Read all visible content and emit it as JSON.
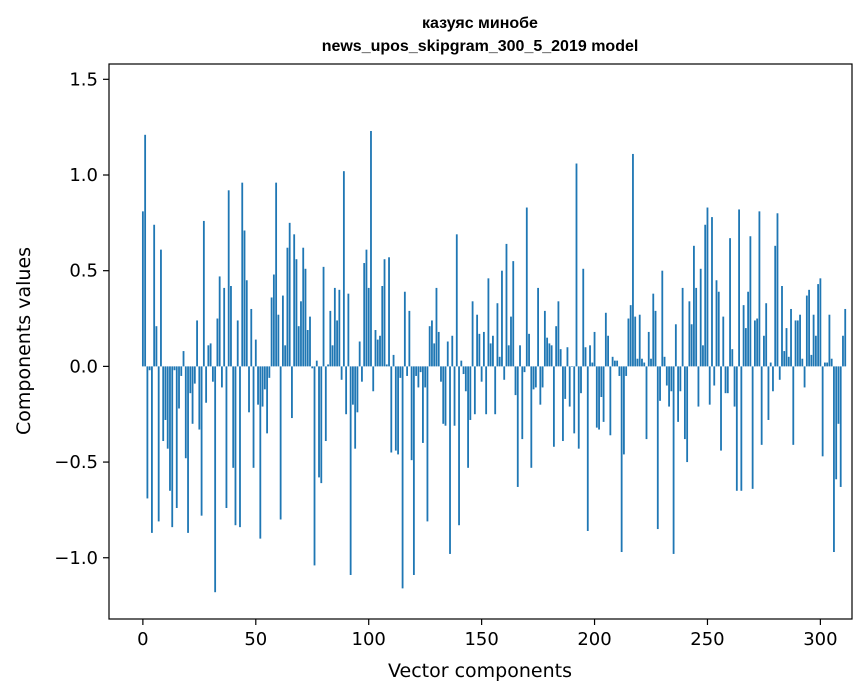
{
  "chart_data": {
    "type": "bar",
    "title_line1": "казуяс минобе",
    "title_line2": "news_upos_skipgram_300_5_2019 model",
    "xlabel": "Vector components",
    "ylabel": "Components values",
    "xlim": [
      -15,
      314
    ],
    "ylim": [
      -1.32,
      1.58
    ],
    "xticks": [
      0,
      50,
      100,
      150,
      200,
      250,
      300
    ],
    "xtick_labels": [
      "0",
      "50",
      "100",
      "150",
      "200",
      "250",
      "300"
    ],
    "yticks": [
      -1.0,
      -0.5,
      0.0,
      0.5,
      1.0,
      1.5
    ],
    "ytick_labels": [
      "−1.0",
      "−0.5",
      "0.0",
      "0.5",
      "1.0",
      "1.5"
    ],
    "bar_color": "#1f77b4",
    "values": [
      0.81,
      1.21,
      -0.69,
      -0.02,
      -0.87,
      0.74,
      0.21,
      -0.81,
      0.61,
      -0.39,
      -0.28,
      -0.43,
      -0.65,
      -0.84,
      -0.02,
      -0.74,
      -0.22,
      -0.05,
      0.08,
      -0.48,
      -0.87,
      -0.14,
      -0.3,
      -0.09,
      0.24,
      -0.33,
      -0.78,
      0.76,
      -0.19,
      0.11,
      0.12,
      -0.08,
      -1.18,
      0.25,
      0.47,
      -0.11,
      0.41,
      -0.74,
      0.92,
      0.42,
      -0.53,
      -0.83,
      0.24,
      -0.84,
      0.96,
      0.71,
      0.45,
      -0.24,
      0.3,
      -0.53,
      0.14,
      -0.2,
      -0.9,
      -0.21,
      -0.12,
      -0.35,
      -0.06,
      0.36,
      0.48,
      0.96,
      0.27,
      -0.8,
      0.37,
      0.11,
      0.62,
      0.75,
      -0.27,
      0.69,
      0.56,
      0.21,
      0.34,
      0.62,
      0.51,
      0.19,
      0.26,
      -0.01,
      -1.04,
      0.03,
      -0.58,
      -0.61,
      0.52,
      -0.39,
      0.01,
      0.29,
      0.11,
      0.41,
      0.24,
      0.4,
      -0.07,
      1.02,
      -0.25,
      0.38,
      -1.09,
      -0.2,
      -0.43,
      -0.24,
      0.13,
      -0.08,
      0.54,
      0.61,
      0.41,
      1.23,
      -0.13,
      0.19,
      0.14,
      0.16,
      0.42,
      0.56,
      0.01,
      0.57,
      -0.45,
      0.06,
      -0.44,
      -0.46,
      -0.06,
      -1.16,
      0.39,
      -0.05,
      0.29,
      -0.49,
      -1.09,
      -0.05,
      -0.11,
      -0.03,
      -0.4,
      -0.11,
      -0.81,
      0.21,
      0.24,
      0.12,
      0.41,
      0.18,
      -0.08,
      -0.3,
      -0.31,
      0.13,
      -0.98,
      0.16,
      -0.31,
      0.69,
      -0.83,
      0.03,
      -0.04,
      -0.13,
      -0.53,
      -0.28,
      0.34,
      -0.25,
      0.27,
      0.17,
      -0.08,
      0.18,
      -0.25,
      0.46,
      0.12,
      0.16,
      -0.25,
      0.33,
      0.05,
      0.5,
      -0.07,
      0.64,
      0.11,
      0.26,
      0.55,
      -0.15,
      -0.63,
      0.11,
      -0.38,
      -0.03,
      0.83,
      0.17,
      -0.53,
      -0.12,
      -0.11,
      0.41,
      -0.2,
      -0.11,
      0.29,
      0.15,
      0.12,
      0.11,
      -0.42,
      0.21,
      0.34,
      0.09,
      -0.39,
      -0.17,
      0.1,
      -0.21,
      0.0,
      -0.35,
      1.06,
      -0.43,
      -0.14,
      0.51,
      0.1,
      -0.86,
      0.11,
      0.02,
      0.18,
      -0.32,
      -0.33,
      -0.16,
      -0.29,
      0.28,
      0.16,
      -0.36,
      0.05,
      0.03,
      0.03,
      -0.05,
      -0.97,
      -0.46,
      -0.05,
      0.25,
      0.32,
      1.11,
      0.26,
      0.04,
      0.27,
      0.04,
      0.02,
      -0.38,
      0.18,
      0.04,
      0.38,
      0.29,
      -0.85,
      -0.18,
      0.5,
      0.05,
      -0.1,
      -0.21,
      -0.13,
      -0.98,
      0.22,
      -0.29,
      -0.13,
      0.41,
      -0.38,
      -0.5,
      0.34,
      0.22,
      0.63,
      0.41,
      -0.21,
      0.51,
      0.11,
      0.74,
      0.83,
      -0.2,
      0.78,
      -0.1,
      0.45,
      0.39,
      -0.44,
      0.26,
      -0.14,
      -0.14,
      0.67,
      0.09,
      -0.21,
      -0.65,
      0.82,
      -0.65,
      0.32,
      0.2,
      0.39,
      0.68,
      -0.64,
      0.24,
      0.25,
      0.81,
      -0.41,
      0.16,
      0.33,
      -0.28,
      0.02,
      -0.13,
      0.63,
      0.8,
      -0.07,
      0.42,
      0.08,
      0.2,
      0.05,
      0.3,
      -0.41,
      0.24,
      0.24,
      0.27,
      0.04,
      -0.11,
      0.37,
      0.4,
      0.06,
      0.27,
      0.16,
      0.43,
      0.46,
      -0.47,
      0.02,
      0.02,
      0.27,
      0.04,
      -0.97,
      -0.59,
      -0.3,
      -0.63,
      0.16,
      0.3
    ]
  }
}
